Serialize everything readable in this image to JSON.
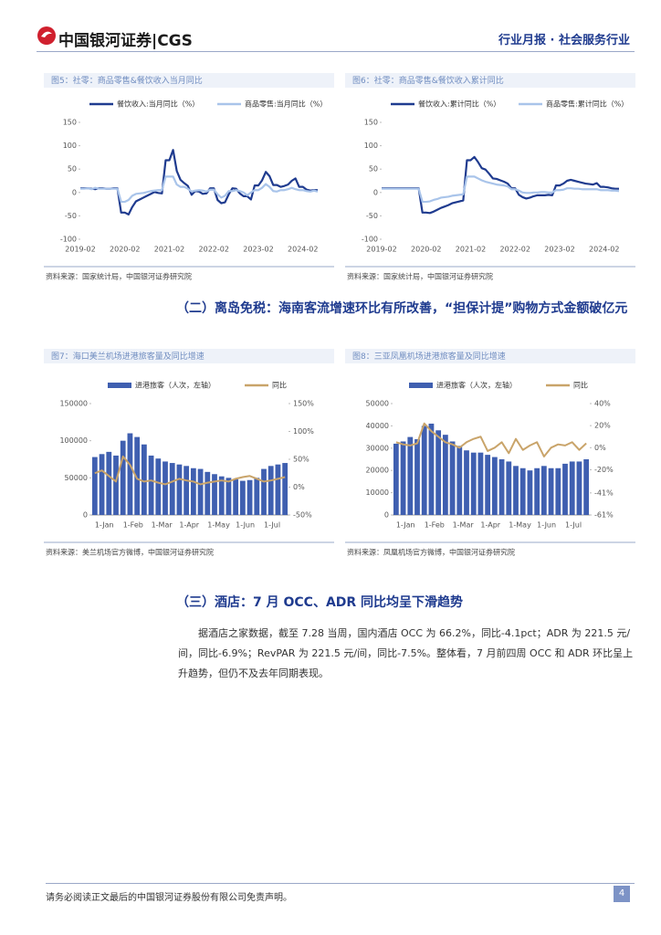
{
  "header": {
    "logo": "中国银河证券|CGS",
    "category": "行业月报 · 社会服务行业"
  },
  "chart_data": [
    {
      "type": "line",
      "title": "图5：社零：商品零售&餐饮收入当月同比",
      "categories": [
        "2019-02",
        null,
        null,
        null,
        null,
        null,
        null,
        null,
        null,
        null,
        null,
        null,
        "2020-02",
        null,
        null,
        null,
        null,
        null,
        null,
        null,
        null,
        null,
        null,
        null,
        "2021-02",
        null,
        null,
        null,
        null,
        null,
        null,
        null,
        null,
        null,
        null,
        null,
        "2022-02",
        null,
        null,
        null,
        null,
        null,
        null,
        null,
        null,
        null,
        null,
        null,
        "2023-02",
        null,
        null,
        null,
        null,
        null,
        null,
        null,
        null,
        null,
        null,
        null,
        "2024-02",
        null,
        null,
        null,
        null
      ],
      "series": [
        {
          "name": "餐饮收入:当月同比（%）",
          "color": "#1f3b8f",
          "values": [
            9,
            9,
            9,
            8,
            7,
            9,
            9,
            8,
            8,
            9,
            9,
            -43,
            -43,
            -47,
            -31,
            -19,
            -15,
            -11,
            -7,
            -3,
            1,
            -1,
            -2,
            69,
            69,
            91,
            46,
            27,
            20,
            14,
            -5,
            3,
            2,
            -3,
            -2,
            9,
            9,
            -16,
            -23,
            -21,
            -4,
            9,
            8,
            -2,
            -8,
            -8,
            -15,
            15,
            15,
            26,
            44,
            35,
            16,
            16,
            12,
            14,
            17,
            25,
            30,
            12,
            12,
            6,
            4,
            5,
            5
          ]
        },
        {
          "name": "商品零售:当月同比（%）",
          "color": "#a9c4ea",
          "values": [
            8,
            8,
            9,
            7,
            10,
            8,
            8,
            8,
            8,
            8,
            8,
            -20,
            -20,
            -16,
            -7,
            -3,
            -2,
            -1,
            1,
            3,
            4,
            5,
            5,
            34,
            34,
            34,
            17,
            12,
            12,
            8,
            2,
            4,
            5,
            4,
            2,
            6,
            6,
            -4,
            -11,
            -7,
            3,
            3,
            5,
            3,
            0,
            -6,
            0,
            5,
            5,
            10,
            18,
            12,
            3,
            2,
            5,
            5,
            7,
            10,
            7,
            5,
            5,
            3,
            2,
            4,
            2
          ]
        }
      ],
      "ylim": [
        -100,
        150
      ],
      "yticks": [
        -100,
        -50,
        0,
        50,
        100,
        150
      ],
      "source": "资料来源：国家统计局，中国银河证券研究院"
    },
    {
      "type": "line",
      "title": "图6：社零：商品零售&餐饮收入累计同比",
      "categories": [
        "2019-02",
        null,
        null,
        null,
        null,
        null,
        null,
        null,
        null,
        null,
        null,
        null,
        "2020-02",
        null,
        null,
        null,
        null,
        null,
        null,
        null,
        null,
        null,
        null,
        null,
        "2021-02",
        null,
        null,
        null,
        null,
        null,
        null,
        null,
        null,
        null,
        null,
        null,
        "2022-02",
        null,
        null,
        null,
        null,
        null,
        null,
        null,
        null,
        null,
        null,
        null,
        "2023-02",
        null,
        null,
        null,
        null,
        null,
        null,
        null,
        null,
        null,
        null,
        null,
        "2024-02",
        null,
        null,
        null,
        null
      ],
      "series": [
        {
          "name": "餐饮收入:累计同比（%）",
          "color": "#1f3b8f",
          "values": [
            9,
            9,
            9,
            9,
            9,
            9,
            9,
            9,
            9,
            9,
            9,
            -43,
            -43,
            -44,
            -41,
            -37,
            -33,
            -30,
            -27,
            -23,
            -21,
            -19,
            -17,
            69,
            69,
            76,
            65,
            52,
            49,
            40,
            30,
            29,
            26,
            23,
            19,
            9,
            9,
            -5,
            -10,
            -13,
            -11,
            -8,
            -6,
            -6,
            -6,
            -5,
            -6,
            15,
            15,
            19,
            25,
            27,
            25,
            23,
            21,
            19,
            18,
            17,
            20,
            12,
            12,
            11,
            9,
            8,
            8
          ]
        },
        {
          "name": "商品零售:累计同比（%）",
          "color": "#a9c4ea",
          "values": [
            8,
            8,
            8,
            8,
            8,
            8,
            8,
            8,
            8,
            8,
            8,
            -20,
            -20,
            -19,
            -16,
            -14,
            -11,
            -10,
            -9,
            -7,
            -6,
            -5,
            -4,
            34,
            34,
            34,
            30,
            26,
            23,
            21,
            19,
            17,
            16,
            15,
            13,
            7,
            7,
            4,
            0,
            -1,
            -1,
            0,
            0,
            1,
            1,
            0,
            0,
            5,
            5,
            6,
            9,
            9,
            8,
            8,
            7,
            7,
            7,
            7,
            7,
            5,
            5,
            5,
            4,
            4,
            3
          ]
        }
      ],
      "ylim": [
        -100,
        150
      ],
      "yticks": [
        -100,
        -50,
        0,
        50,
        100,
        150
      ],
      "source": "资料来源：国家统计局，中国银河证券研究院"
    },
    {
      "type": "combo",
      "title": "图7：海口美兰机场进港旅客量及同比增速",
      "categories": [
        "1-Jan",
        null,
        null,
        null,
        "1-Feb",
        null,
        null,
        null,
        "1-Mar",
        null,
        null,
        null,
        "1-Apr",
        null,
        null,
        null,
        "1-May",
        null,
        null,
        null,
        "1-Jun",
        null,
        null,
        null,
        "1-Jul",
        null,
        null,
        null
      ],
      "series": [
        {
          "name": "进港旅客（人次，左轴）",
          "type": "bar",
          "color": "#3f5fb0",
          "values": [
            78000,
            82000,
            85000,
            80000,
            100000,
            110000,
            105000,
            95000,
            80000,
            76000,
            72000,
            70000,
            68000,
            66000,
            63000,
            62000,
            58000,
            55000,
            52000,
            50000,
            48000,
            46000,
            47000,
            50000,
            62000,
            66000,
            68000,
            70000
          ]
        },
        {
          "name": "同比",
          "type": "line",
          "axis": "y2",
          "color": "#c9a46a",
          "values": [
            25,
            30,
            20,
            10,
            55,
            40,
            15,
            10,
            12,
            8,
            5,
            10,
            15,
            12,
            10,
            5,
            8,
            10,
            12,
            10,
            15,
            18,
            20,
            15,
            10,
            12,
            15,
            18
          ]
        }
      ],
      "ylim": [
        0,
        150000
      ],
      "yticks": [
        0,
        50000,
        100000,
        150000
      ],
      "y2lim": [
        -50,
        150
      ],
      "y2ticks": [
        {
          "value": -50,
          "label": "-50%"
        },
        {
          "value": 0,
          "label": "0%"
        },
        {
          "value": 50,
          "label": "50%"
        },
        {
          "value": 100,
          "label": "100%"
        },
        {
          "value": 150,
          "label": "150%"
        }
      ],
      "source": "资料来源：美兰机场官方微博，中国银河证券研究院"
    },
    {
      "type": "combo",
      "title": "图8：三亚凤凰机场进港旅客量及同比增速",
      "categories": [
        "1-Jan",
        null,
        null,
        null,
        "1-Feb",
        null,
        null,
        null,
        "1-Mar",
        null,
        null,
        null,
        "1-Apr",
        null,
        null,
        null,
        "1-May",
        null,
        null,
        null,
        "1-Jun",
        null,
        null,
        null,
        "1-Jul",
        null,
        null,
        null
      ],
      "series": [
        {
          "name": "进港旅客（人次，左轴）",
          "type": "bar",
          "color": "#3f5fb0",
          "values": [
            32000,
            33000,
            35000,
            34000,
            40000,
            41000,
            38000,
            36000,
            33000,
            31000,
            29000,
            28000,
            28000,
            27000,
            26000,
            25000,
            24000,
            22000,
            21000,
            20000,
            21000,
            22000,
            21000,
            21000,
            23000,
            24000,
            24000,
            25000
          ]
        },
        {
          "name": "同比",
          "type": "line",
          "axis": "y2",
          "color": "#c9a46a",
          "values": [
            5,
            3,
            2,
            4,
            22,
            15,
            10,
            5,
            3,
            0,
            5,
            8,
            10,
            -3,
            0,
            5,
            -5,
            8,
            -2,
            2,
            5,
            -8,
            0,
            3,
            2,
            5,
            -2,
            4
          ]
        }
      ],
      "ylim": [
        0,
        50000
      ],
      "yticks": [
        0,
        10000,
        20000,
        30000,
        40000,
        50000
      ],
      "y2lim": [
        -61,
        40
      ],
      "y2ticks": [
        {
          "value": -61,
          "label": "-61%"
        },
        {
          "value": -41,
          "label": "-41%"
        },
        {
          "value": -20,
          "label": "-20%"
        },
        {
          "value": 0,
          "label": "0%"
        },
        {
          "value": 20,
          "label": "20%"
        },
        {
          "value": 40,
          "label": "40%"
        }
      ],
      "source": "资料来源：凤凰机场官方微博，中国银河证券研究院"
    }
  ],
  "sections": [
    {
      "heading": "（二）离岛免税：海南客流增速环比有所改善，“担保计提”购物方式金额破亿元"
    },
    {
      "heading": "（三）酒店：7 月 OCC、ADR 同比均呈下滑趋势",
      "paragraph": "据酒店之家数据，截至 7.28 当周，国内酒店 OCC 为 66.2%，同比-4.1pct；ADR 为 221.5 元/间，同比-6.9%；RevPAR 为 221.5 元/间，同比-7.5%。整体看，7 月前四周 OCC 和 ADR 环比呈上升趋势，但仍不及去年同期表现。"
    }
  ],
  "footer": {
    "disclaimer": "请务必阅读正文最后的中国银河证券股份有限公司免责声明。",
    "page": "4"
  }
}
